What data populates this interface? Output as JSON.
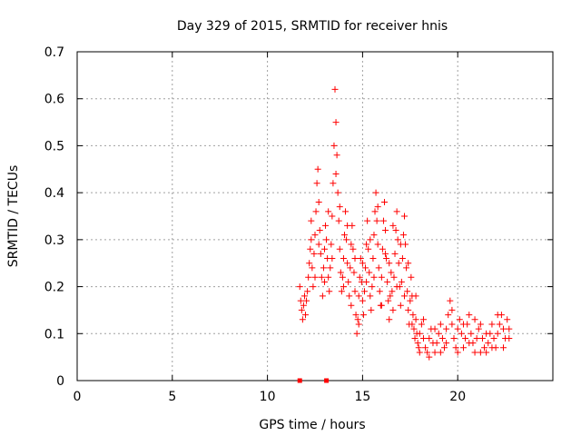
{
  "chart_data": {
    "type": "scatter",
    "title": "Day 329 of 2015, SRMTID for receiver hnis",
    "xlabel": "GPS time / hours",
    "ylabel": "SRMTID / TECUs",
    "xlim": [
      0,
      25
    ],
    "ylim": [
      0,
      0.7
    ],
    "x_ticks": [
      0,
      5,
      10,
      15,
      20
    ],
    "x_tick_labels": [
      "0",
      "5",
      "10",
      "15",
      "20"
    ],
    "y_ticks": [
      0,
      0.1,
      0.2,
      0.3,
      0.4,
      0.5,
      0.6,
      0.7
    ],
    "y_tick_labels": [
      "0",
      "0.1",
      "0.2",
      "0.3",
      "0.4",
      "0.5",
      "0.6",
      "0.7"
    ],
    "grid": true,
    "marker": "plus",
    "color": "#ff0000",
    "series": [
      {
        "name": "SRMTID",
        "points": [
          [
            11.7,
            0.2
          ],
          [
            11.75,
            0.17
          ],
          [
            11.8,
            0.15
          ],
          [
            11.85,
            0.13
          ],
          [
            11.9,
            0.16
          ],
          [
            11.95,
            0.18
          ],
          [
            12.0,
            0.14
          ],
          [
            12.05,
            0.17
          ],
          [
            12.1,
            0.19
          ],
          [
            12.15,
            0.22
          ],
          [
            12.2,
            0.25
          ],
          [
            12.25,
            0.28
          ],
          [
            12.3,
            0.3
          ],
          [
            12.35,
            0.24
          ],
          [
            12.4,
            0.2
          ],
          [
            12.45,
            0.27
          ],
          [
            12.5,
            0.31
          ],
          [
            12.55,
            0.36
          ],
          [
            12.6,
            0.42
          ],
          [
            12.65,
            0.45
          ],
          [
            12.7,
            0.38
          ],
          [
            12.75,
            0.32
          ],
          [
            12.8,
            0.27
          ],
          [
            12.85,
            0.22
          ],
          [
            12.9,
            0.18
          ],
          [
            12.95,
            0.24
          ],
          [
            13.0,
            0.28
          ],
          [
            13.05,
            0.33
          ],
          [
            13.1,
            0.3
          ],
          [
            13.15,
            0.26
          ],
          [
            13.2,
            0.22
          ],
          [
            13.25,
            0.19
          ],
          [
            13.3,
            0.24
          ],
          [
            13.35,
            0.29
          ],
          [
            13.4,
            0.35
          ],
          [
            13.45,
            0.42
          ],
          [
            13.5,
            0.5
          ],
          [
            13.55,
            0.62
          ],
          [
            13.6,
            0.55
          ],
          [
            13.65,
            0.48
          ],
          [
            13.7,
            0.4
          ],
          [
            13.75,
            0.34
          ],
          [
            13.8,
            0.28
          ],
          [
            13.85,
            0.23
          ],
          [
            13.9,
            0.19
          ],
          [
            13.95,
            0.22
          ],
          [
            14.0,
            0.26
          ],
          [
            14.05,
            0.31
          ],
          [
            14.1,
            0.36
          ],
          [
            14.15,
            0.3
          ],
          [
            14.2,
            0.25
          ],
          [
            14.25,
            0.21
          ],
          [
            14.3,
            0.18
          ],
          [
            14.35,
            0.24
          ],
          [
            14.4,
            0.29
          ],
          [
            14.45,
            0.33
          ],
          [
            14.5,
            0.28
          ],
          [
            14.55,
            0.23
          ],
          [
            14.6,
            0.19
          ],
          [
            14.65,
            0.14
          ],
          [
            14.7,
            0.1
          ],
          [
            14.75,
            0.13
          ],
          [
            14.8,
            0.18
          ],
          [
            14.85,
            0.22
          ],
          [
            14.9,
            0.26
          ],
          [
            14.95,
            0.21
          ],
          [
            15.0,
            0.17
          ],
          [
            15.05,
            0.14
          ],
          [
            15.1,
            0.19
          ],
          [
            15.15,
            0.24
          ],
          [
            15.2,
            0.29
          ],
          [
            15.25,
            0.34
          ],
          [
            15.3,
            0.28
          ],
          [
            15.35,
            0.23
          ],
          [
            15.4,
            0.18
          ],
          [
            15.45,
            0.15
          ],
          [
            15.5,
            0.2
          ],
          [
            15.55,
            0.26
          ],
          [
            15.6,
            0.31
          ],
          [
            15.65,
            0.36
          ],
          [
            15.7,
            0.4
          ],
          [
            15.75,
            0.34
          ],
          [
            15.8,
            0.29
          ],
          [
            15.85,
            0.24
          ],
          [
            15.9,
            0.19
          ],
          [
            15.95,
            0.16
          ],
          [
            16.0,
            0.22
          ],
          [
            16.05,
            0.28
          ],
          [
            16.1,
            0.34
          ],
          [
            16.15,
            0.38
          ],
          [
            16.2,
            0.32
          ],
          [
            16.25,
            0.26
          ],
          [
            16.3,
            0.21
          ],
          [
            16.35,
            0.17
          ],
          [
            16.4,
            0.13
          ],
          [
            16.45,
            0.18
          ],
          [
            16.5,
            0.23
          ],
          [
            16.55,
            0.19
          ],
          [
            16.6,
            0.15
          ],
          [
            16.65,
            0.22
          ],
          [
            16.7,
            0.27
          ],
          [
            16.75,
            0.32
          ],
          [
            16.8,
            0.36
          ],
          [
            16.85,
            0.3
          ],
          [
            16.9,
            0.25
          ],
          [
            16.95,
            0.2
          ],
          [
            17.0,
            0.16
          ],
          [
            17.05,
            0.21
          ],
          [
            17.1,
            0.26
          ],
          [
            17.15,
            0.31
          ],
          [
            17.2,
            0.35
          ],
          [
            17.25,
            0.29
          ],
          [
            17.3,
            0.24
          ],
          [
            17.35,
            0.19
          ],
          [
            17.4,
            0.15
          ],
          [
            17.45,
            0.12
          ],
          [
            17.5,
            0.17
          ],
          [
            17.55,
            0.22
          ],
          [
            17.6,
            0.18
          ],
          [
            17.65,
            0.14
          ],
          [
            17.7,
            0.11
          ],
          [
            17.75,
            0.09
          ],
          [
            17.8,
            0.13
          ],
          [
            17.85,
            0.1
          ],
          [
            17.9,
            0.08
          ],
          [
            17.95,
            0.07
          ],
          [
            18.0,
            0.1
          ],
          [
            18.1,
            0.12
          ],
          [
            18.2,
            0.09
          ],
          [
            18.3,
            0.07
          ],
          [
            18.4,
            0.06
          ],
          [
            18.5,
            0.09
          ],
          [
            18.6,
            0.11
          ],
          [
            18.7,
            0.08
          ],
          [
            18.8,
            0.06
          ],
          [
            18.9,
            0.08
          ],
          [
            19.0,
            0.1
          ],
          [
            19.1,
            0.12
          ],
          [
            19.2,
            0.09
          ],
          [
            19.3,
            0.07
          ],
          [
            19.4,
            0.11
          ],
          [
            19.5,
            0.14
          ],
          [
            19.6,
            0.17
          ],
          [
            19.7,
            0.12
          ],
          [
            19.8,
            0.09
          ],
          [
            19.9,
            0.07
          ],
          [
            20.0,
            0.11
          ],
          [
            20.1,
            0.13
          ],
          [
            20.2,
            0.1
          ],
          [
            20.3,
            0.07
          ],
          [
            20.4,
            0.09
          ],
          [
            20.5,
            0.12
          ],
          [
            20.6,
            0.14
          ],
          [
            20.7,
            0.1
          ],
          [
            20.8,
            0.08
          ],
          [
            20.9,
            0.06
          ],
          [
            21.0,
            0.09
          ],
          [
            21.1,
            0.11
          ],
          [
            21.2,
            0.12
          ],
          [
            21.3,
            0.09
          ],
          [
            21.4,
            0.07
          ],
          [
            21.5,
            0.06
          ],
          [
            21.6,
            0.08
          ],
          [
            21.7,
            0.1
          ],
          [
            21.8,
            0.12
          ],
          [
            21.9,
            0.09
          ],
          [
            22.0,
            0.07
          ],
          [
            22.1,
            0.1
          ],
          [
            22.2,
            0.12
          ],
          [
            22.3,
            0.14
          ],
          [
            22.4,
            0.11
          ],
          [
            22.5,
            0.09
          ],
          [
            22.6,
            0.13
          ],
          [
            22.7,
            0.11
          ],
          [
            12.3,
            0.34
          ],
          [
            12.5,
            0.22
          ],
          [
            12.7,
            0.29
          ],
          [
            13.0,
            0.21
          ],
          [
            13.2,
            0.36
          ],
          [
            13.4,
            0.26
          ],
          [
            13.6,
            0.44
          ],
          [
            13.8,
            0.37
          ],
          [
            14.0,
            0.2
          ],
          [
            14.2,
            0.33
          ],
          [
            14.4,
            0.16
          ],
          [
            14.6,
            0.26
          ],
          [
            14.8,
            0.12
          ],
          [
            15.0,
            0.25
          ],
          [
            15.2,
            0.21
          ],
          [
            15.4,
            0.3
          ],
          [
            15.6,
            0.22
          ],
          [
            15.8,
            0.37
          ],
          [
            16.0,
            0.16
          ],
          [
            16.2,
            0.27
          ],
          [
            16.4,
            0.25
          ],
          [
            16.6,
            0.33
          ],
          [
            16.8,
            0.2
          ],
          [
            17.0,
            0.29
          ],
          [
            17.2,
            0.18
          ],
          [
            17.4,
            0.25
          ],
          [
            17.6,
            0.12
          ],
          [
            17.8,
            0.18
          ],
          [
            18.0,
            0.06
          ],
          [
            18.2,
            0.13
          ],
          [
            18.5,
            0.05
          ],
          [
            18.8,
            0.11
          ],
          [
            19.1,
            0.06
          ],
          [
            19.4,
            0.08
          ],
          [
            19.7,
            0.15
          ],
          [
            20.0,
            0.06
          ],
          [
            20.3,
            0.12
          ],
          [
            20.6,
            0.08
          ],
          [
            20.9,
            0.13
          ],
          [
            21.2,
            0.06
          ],
          [
            21.5,
            0.1
          ],
          [
            21.8,
            0.07
          ],
          [
            22.1,
            0.14
          ],
          [
            22.4,
            0.07
          ],
          [
            22.7,
            0.09
          ]
        ]
      }
    ],
    "zero_markers": [
      [
        11.7,
        0
      ],
      [
        13.1,
        0
      ]
    ]
  }
}
